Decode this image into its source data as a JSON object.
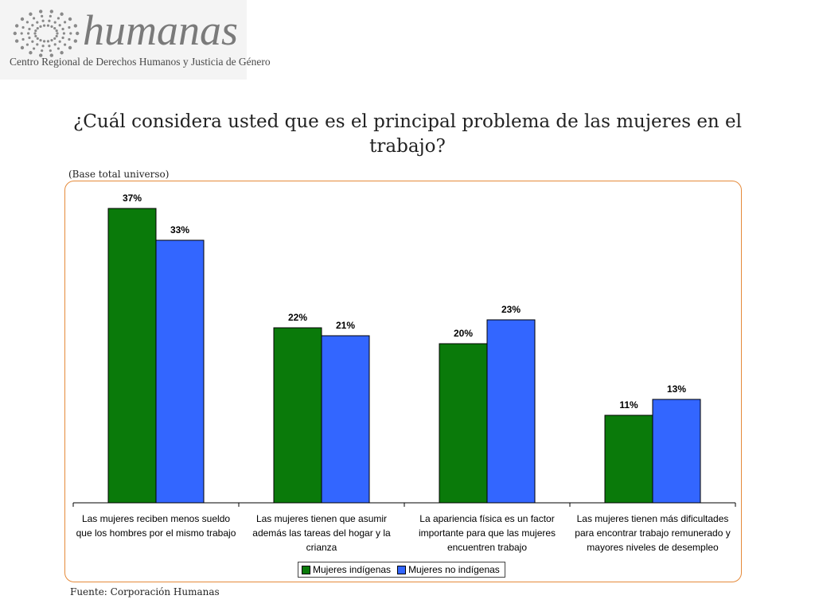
{
  "logo": {
    "name": "humanas",
    "subtitle": "Centro Regional de Derechos Humanos y Justicia de Género"
  },
  "title": "¿Cuál considera usted que es el principal problema de las mujeres en el trabajo?",
  "base_note": "(Base total universo)",
  "source": "Fuente: Corporación Humanas",
  "colors": {
    "series1": "#0a7a0a",
    "series2": "#3366ff",
    "frame": "#e58a3a"
  },
  "chart_data": {
    "type": "bar",
    "categories": [
      "Las mujeres reciben menos sueldo que los hombres por el mismo trabajo",
      "Las mujeres tienen que asumir además las tareas del hogar y la crianza",
      "La apariencia física es un factor importante para que las mujeres encuentren trabajo",
      "Las mujeres tienen más dificultades para encontrar trabajo remunerado y mayores niveles de desempleo"
    ],
    "series": [
      {
        "name": "Mujeres indígenas",
        "values": [
          37,
          22,
          20,
          11
        ],
        "labels": [
          "37%",
          "22%",
          "20%",
          "11%"
        ]
      },
      {
        "name": "Mujeres no indígenas",
        "values": [
          33,
          21,
          23,
          13
        ],
        "labels": [
          "33%",
          "21%",
          "23%",
          "13%"
        ]
      }
    ],
    "ylim": [
      0,
      40
    ],
    "legend_position": "bottom",
    "grid": false
  }
}
